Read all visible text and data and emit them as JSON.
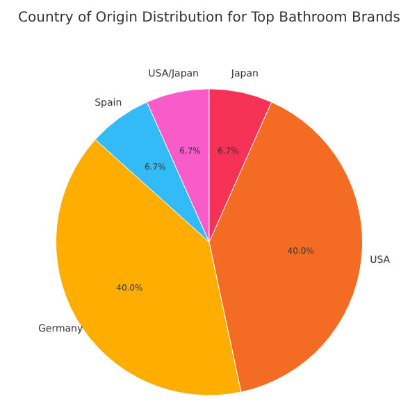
{
  "chart_data": {
    "type": "pie",
    "title": "Country of Origin Distribution for Top Bathroom Brands",
    "categories": [
      "USA/Japan",
      "Spain",
      "Germany",
      "USA",
      "Japan"
    ],
    "values": [
      6.67,
      6.67,
      40,
      40,
      6.66
    ],
    "value_labels": [
      "6.7%",
      "6.7%",
      "40.0%",
      "40.0%",
      "6.7%"
    ],
    "colors": [
      "#f95bc8",
      "#33bbf7",
      "#ffad00",
      "#f46b23",
      "#f63357"
    ]
  }
}
